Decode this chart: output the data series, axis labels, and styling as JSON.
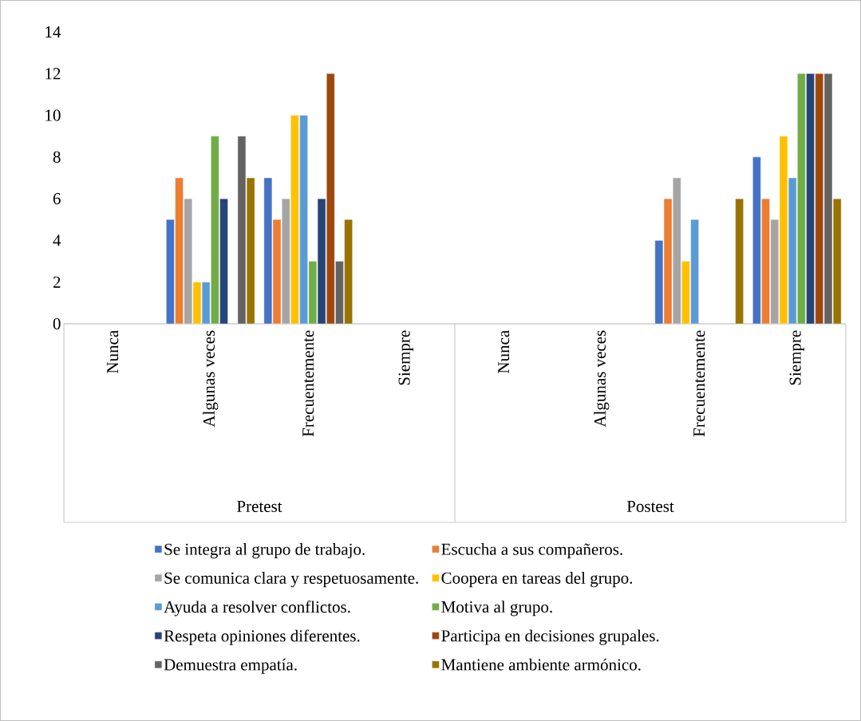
{
  "chart_data": {
    "type": "bar",
    "categories": [
      "Nunca",
      "Algunas veces",
      "Frecuentemente",
      "Siempre",
      "Nunca",
      "Algunas veces",
      "Frecuentemente",
      "Siempre"
    ],
    "annotations": [
      "Pretest",
      "Postest"
    ],
    "ylim": [
      0,
      14
    ],
    "yticks": [
      0,
      2,
      4,
      6,
      8,
      10,
      12,
      14
    ],
    "legend": "bottom",
    "series": [
      {
        "name": "Se integra al grupo de trabajo.",
        "color": "#4472c4",
        "values": [
          null,
          5,
          7,
          null,
          null,
          null,
          4,
          8
        ]
      },
      {
        "name": "Escucha a sus compañeros.",
        "color": "#ed7d31",
        "values": [
          null,
          7,
          5,
          null,
          null,
          null,
          6,
          6
        ]
      },
      {
        "name": "Se comunica clara y respetuosamente.",
        "color": "#a5a5a5",
        "values": [
          null,
          6,
          6,
          null,
          null,
          null,
          7,
          5
        ]
      },
      {
        "name": "Coopera en tareas del grupo.",
        "color": "#ffc000",
        "values": [
          null,
          2,
          10,
          null,
          null,
          null,
          3,
          9
        ]
      },
      {
        "name": "Ayuda a resolver conflictos.",
        "color": "#5b9bd5",
        "values": [
          null,
          2,
          10,
          null,
          null,
          null,
          5,
          7
        ]
      },
      {
        "name": "Motiva al grupo.",
        "color": "#70ad47",
        "values": [
          null,
          9,
          3,
          null,
          null,
          null,
          null,
          12
        ]
      },
      {
        "name": "Respeta opiniones diferentes.",
        "color": "#264478",
        "values": [
          null,
          6,
          6,
          null,
          null,
          null,
          null,
          12
        ]
      },
      {
        "name": "Participa en decisiones grupales.",
        "color": "#9e480e",
        "values": [
          null,
          null,
          12,
          null,
          null,
          null,
          null,
          12
        ]
      },
      {
        "name": "Demuestra empatía.",
        "color": "#636363",
        "values": [
          null,
          9,
          3,
          null,
          null,
          null,
          null,
          12
        ]
      },
      {
        "name": "Mantiene ambiente armónico.",
        "color": "#997300",
        "values": [
          null,
          7,
          5,
          null,
          null,
          null,
          6,
          6
        ]
      }
    ]
  }
}
